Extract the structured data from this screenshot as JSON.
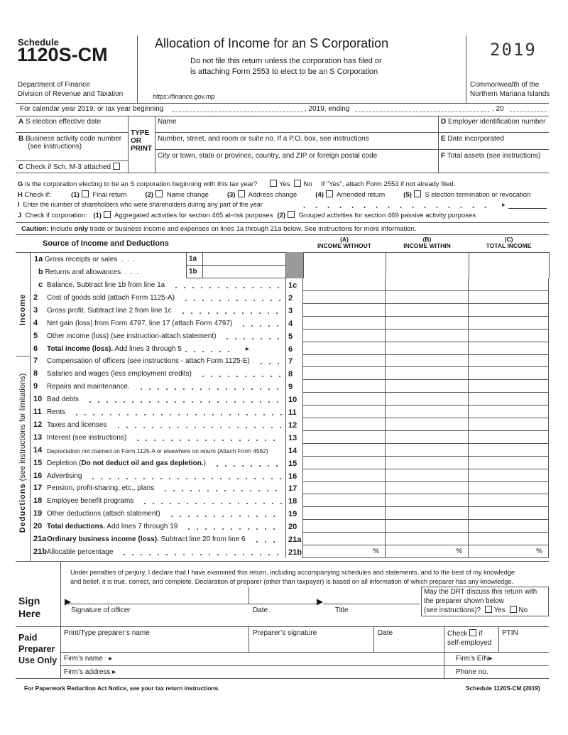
{
  "header": {
    "schedule": "Schedule",
    "form_number": "1120S-CM",
    "dept1": "Department of Finance",
    "dept2": "Division of Revenue and Taxation",
    "title": "Allocation of Income for an S Corporation",
    "subtitle1": "Do not file this return unless the corporation has filed or",
    "subtitle2": "is attaching Form 2553 to elect to be an S Corporation",
    "url": "https://finance.gov.mp",
    "year": "2019",
    "commonwealth1": "Commonwealth of the",
    "commonwealth2": "Northern Mariana Islands"
  },
  "calendar": {
    "text1": "For calendar year 2019, or tax year beginning",
    "text2": ", 2019, ending",
    "text3": ", 20"
  },
  "entity": {
    "a": "A",
    "a_label": "S election effective date",
    "b": "B",
    "b_label1": "Business activity code number",
    "b_label2": "(see instructions)",
    "c": "C",
    "c_label": "Check if Sch. M-3 attached",
    "type1": "TYPE",
    "type2": "OR",
    "type3": "PRINT",
    "name": "Name",
    "street": "Number, street, and room or suite no.  If a P.O. box, see instructions",
    "city": "City or town, state or province, country, and ZIP or foreign postal code",
    "d": "D",
    "d_label": "Employer identification number",
    "e": "E",
    "e_label": "Date incorporated",
    "f": "F",
    "f_label": "Total assets (see instructions)"
  },
  "questions": {
    "g": "G",
    "g_text": "Is the corporation electing to be an S corporation beginning with this tax year?",
    "g_yes": "Yes",
    "g_no": "No",
    "g_note": "If “Yes”, attach Form 2553 if not already filed.",
    "h": "H",
    "h_text": "Check if:",
    "h_items": [
      {
        "n": "(1)",
        "label": "Final return"
      },
      {
        "n": "(2)",
        "label": "Name change"
      },
      {
        "n": "(3)",
        "label": "Address change"
      },
      {
        "n": "(4)",
        "label": "Amended return"
      },
      {
        "n": "(5)",
        "label": "S election termination or revocation"
      }
    ],
    "i": "I",
    "i_text": "Enter the number of shareholders who were shareholders during any part of the year",
    "j": "J",
    "j_text": "Check if corporation:",
    "j_items": [
      {
        "n": "(1)",
        "label": "Aggregated activities for section 465 at-risk purposes"
      },
      {
        "n": "(2)",
        "label": "Grouped activities for section 469 passive activity purposes"
      }
    ]
  },
  "caution": {
    "bold": "Caution:",
    "pre": "Include",
    "only": "only",
    "post": "trade or business income and expenses on lines 1a through 21a below.  See instructions for more information."
  },
  "table": {
    "heading": "Source of Income and Deductions",
    "cols": [
      {
        "letter": "(A)",
        "label": "INCOME WITHOUT"
      },
      {
        "letter": "(B)",
        "label": "INCOME WITHIN"
      },
      {
        "letter": "(C)",
        "label": "TOTAL INCOME"
      }
    ],
    "income_label": "Income",
    "deductions_label": "Deductions",
    "deductions_sub": "(see instructions for limitations)",
    "gray_color": "#9a9a9a",
    "line1a": {
      "num": "1a",
      "label": "Gross receipts or sales",
      "box": "1a"
    },
    "line1b": {
      "num": "b",
      "label": "Returns and allowances",
      "box": "1b"
    },
    "rows": [
      {
        "num": "c",
        "before": "Balance.  Subtract line 1b from line 1a",
        "box": "1c"
      },
      {
        "num": "2",
        "before": "Cost of goods sold (attach Form 1125-A)",
        "box": "2"
      },
      {
        "num": "3",
        "before": "Gross profit.  Subtract line 2 from line 1c",
        "box": "3"
      },
      {
        "num": "4",
        "before": "Net gain (loss) from Form 4797, line 17 (attach Form 4797)",
        "box": "4"
      },
      {
        "num": "5",
        "before": "Other income (loss) (see instruction-attach statement)",
        "box": "5"
      },
      {
        "num": "6",
        "bold": "Total income (loss).",
        "after": " Add lines 3 through 5",
        "box": "6",
        "arrow": "▸"
      },
      {
        "num": "7",
        "before": "Compensation of officers (see instructions - attach Form 1125-E)",
        "box": "7"
      },
      {
        "num": "8",
        "before": "Salaries and wages (less employment credits)",
        "box": "8"
      },
      {
        "num": "9",
        "before": "Repairs and maintenance.",
        "box": "9"
      },
      {
        "num": "10",
        "before": "Bad debts",
        "box": "10"
      },
      {
        "num": "11",
        "before": "Rents",
        "box": "11"
      },
      {
        "num": "12",
        "before": "Taxes and licenses",
        "box": "12"
      },
      {
        "num": "13",
        "before": "Interest (see instructions)",
        "box": "13"
      },
      {
        "num": "14",
        "before": "Depreciation not claimed on Form 1125-A or elsewhere on return (Attach Form 4562)",
        "box": "14",
        "small": true
      },
      {
        "num": "15",
        "before": "Depletion (",
        "bold": "Do not deduct oil and gas depletion.",
        "after": ")",
        "box": "15"
      },
      {
        "num": "16",
        "before": "Advertising",
        "box": "16"
      },
      {
        "num": "17",
        "before": "Pension, profit-sharing, etc., plans",
        "box": "17"
      },
      {
        "num": "18",
        "before": "Employee benefit programs",
        "box": "18"
      },
      {
        "num": "19",
        "before": "Other deductions (attach statement)",
        "box": "19"
      },
      {
        "num": "20",
        "bold": "Total deductions.",
        "after": " Add lines 7 through 19",
        "box": "20"
      },
      {
        "num": "21a",
        "bold": "Ordinary business income (loss).",
        "after": " Subtract line 20 from line 6",
        "box": "21a"
      },
      {
        "num": "21b",
        "before": "Allocable percentage",
        "box": "21b",
        "pct": "%"
      }
    ]
  },
  "sign": {
    "label1": "Sign",
    "label2": "Here",
    "perjury1": "Under penalties of perjury, I declare that I have examined this return, including accompanying schedules and statements, and to the best of my knowledge",
    "perjury2": "and belief, it is true, correct, and complete.  Declaration of preparer (other than taxpayer) is based on all information of which preparer has any knowledge.",
    "sig": "Signature of officer",
    "date": "Date",
    "title": "Title",
    "drt1": "May the DRT discuss this return with",
    "drt2": "the preparer shown below",
    "drt3": "(see instructions)?",
    "yes": "Yes",
    "no": "No"
  },
  "preparer": {
    "label1": "Paid",
    "label2": "Preparer",
    "label3": "Use Only",
    "name": "Print/Type preparer’s name",
    "signature": "Preparer’s signature",
    "date": "Date",
    "check": "Check",
    "if": "if",
    "self_employed": "self-employed",
    "ptin": "PTIN",
    "firm_name": "Firm’s name",
    "firm_ein": "Firm’s EIN",
    "firm_address": "Firm’s address",
    "phone": "Phone no."
  },
  "footer": {
    "left": "For Paperwork Reduction Act Notice, see your tax return instructions.",
    "right": "Schedule 1120S-CM (2019)"
  }
}
